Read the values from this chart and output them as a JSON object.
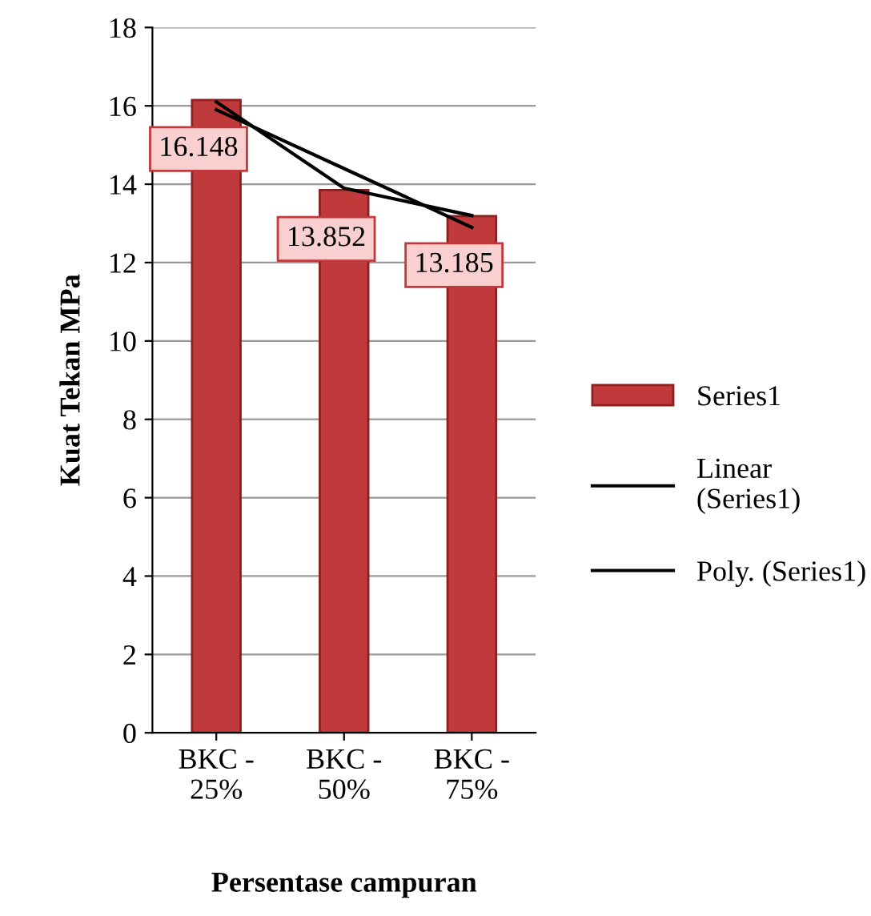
{
  "chart_data": {
    "type": "bar",
    "xlabel": "Persentase campuran",
    "ylabel": "Kuat Tekan MPa",
    "categories": [
      "BKC -\n25%",
      "BKC -\n50%",
      "BKC -\n75%"
    ],
    "series": [
      {
        "name": "Series1",
        "color": "#c0393b",
        "values": [
          16.148,
          13.852,
          13.185
        ],
        "value_labels": [
          "16.148",
          "13.852",
          "13.185"
        ]
      },
      {
        "name": "Linear\n(Series1)",
        "type": "line",
        "color": "#000000",
        "values": [
          15.9,
          14.4,
          12.9
        ]
      },
      {
        "name": "Poly. (Series1)",
        "type": "line",
        "color": "#000000",
        "values": [
          16.1,
          13.9,
          13.2
        ]
      }
    ],
    "ylim": [
      0,
      18
    ],
    "yticks": [
      0,
      2,
      4,
      6,
      8,
      10,
      12,
      14,
      16,
      18
    ],
    "grid": "y",
    "legend": "right"
  }
}
